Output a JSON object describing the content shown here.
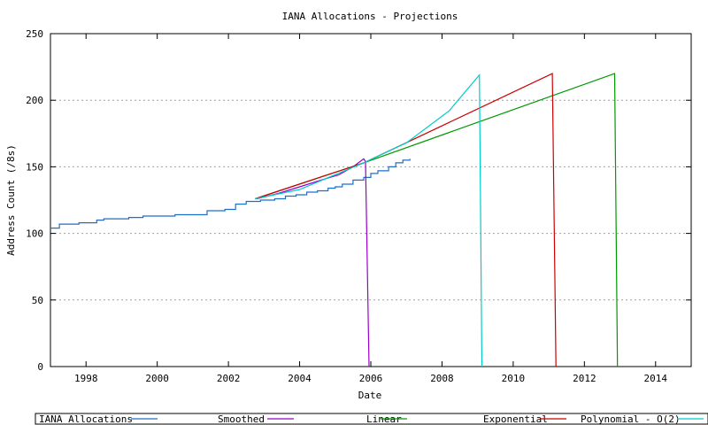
{
  "chart_data": {
    "type": "line",
    "title": "IANA Allocations - Projections",
    "xlabel": "Date",
    "ylabel": "Address Count (/8s)",
    "xlim": [
      1997,
      2015
    ],
    "ylim": [
      0,
      250
    ],
    "x_ticks": [
      "1998",
      "2000",
      "2002",
      "2004",
      "2006",
      "2008",
      "2010",
      "2012",
      "2014"
    ],
    "y_ticks": [
      "0",
      "50",
      "100",
      "150",
      "200",
      "250"
    ],
    "grid": "horizontal dotted at y ticks",
    "legend_position": "bottom",
    "series": [
      {
        "name": "IANA Allocations",
        "color": "#1f6fc9",
        "step": true,
        "points": [
          [
            1997.0,
            104
          ],
          [
            1997.25,
            107
          ],
          [
            1997.8,
            108
          ],
          [
            1998.3,
            110
          ],
          [
            1998.5,
            111
          ],
          [
            1999.2,
            112
          ],
          [
            1999.6,
            113
          ],
          [
            2000.5,
            114
          ],
          [
            2001.4,
            117
          ],
          [
            2001.9,
            118
          ],
          [
            2002.2,
            122
          ],
          [
            2002.5,
            124
          ],
          [
            2002.9,
            125
          ],
          [
            2003.3,
            126
          ],
          [
            2003.6,
            128
          ],
          [
            2003.9,
            129
          ],
          [
            2004.2,
            131
          ],
          [
            2004.5,
            132
          ],
          [
            2004.8,
            134
          ],
          [
            2005.0,
            135
          ],
          [
            2005.2,
            137
          ],
          [
            2005.5,
            140
          ],
          [
            2005.8,
            142
          ],
          [
            2006.0,
            145
          ],
          [
            2006.2,
            147
          ],
          [
            2006.5,
            150
          ],
          [
            2006.7,
            153
          ],
          [
            2006.9,
            155
          ],
          [
            2007.1,
            156
          ]
        ]
      },
      {
        "name": "Smoothed",
        "color": "#9900cc",
        "points": [
          [
            2002.8,
            126
          ],
          [
            2003.4,
            130
          ],
          [
            2004.0,
            135
          ],
          [
            2004.6,
            140
          ],
          [
            2005.1,
            144
          ],
          [
            2005.5,
            150
          ],
          [
            2005.8,
            156
          ],
          [
            2005.85,
            154
          ],
          [
            2005.95,
            0
          ]
        ]
      },
      {
        "name": "Linear",
        "color": "#009900",
        "points": [
          [
            2002.75,
            126
          ],
          [
            2005.8,
            153
          ],
          [
            2012.85,
            220
          ],
          [
            2012.93,
            0
          ]
        ]
      },
      {
        "name": "Exponential",
        "color": "#cc0000",
        "points": [
          [
            2002.75,
            126
          ],
          [
            2005.8,
            153
          ],
          [
            2011.1,
            220
          ],
          [
            2011.2,
            0
          ]
        ]
      },
      {
        "name": "Polynomial - O(2)",
        "color": "#00cccc",
        "points": [
          [
            2002.75,
            126
          ],
          [
            2004.0,
            133
          ],
          [
            2005.8,
            153
          ],
          [
            2007.0,
            168
          ],
          [
            2008.2,
            192
          ],
          [
            2009.05,
            219
          ],
          [
            2009.12,
            0
          ]
        ]
      }
    ]
  }
}
